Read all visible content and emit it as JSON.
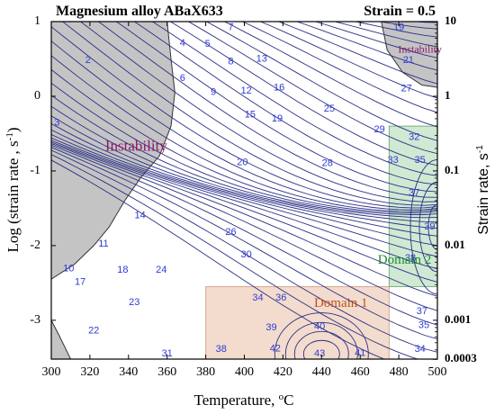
{
  "chart_data": {
    "type": "contour",
    "title": "Magnesium alloy ABaX633",
    "strain_label": "Strain = 0.5",
    "xlabel": "Temperature, ",
    "xlabel_unit_sup": "o",
    "xlabel_unit": "C",
    "ylabel_left": "Log (strain rate , s",
    "ylabel_left_sup": "-1",
    "ylabel_left_end": ")",
    "ylabel_right": "Strain rate, s",
    "ylabel_right_sup": "-1",
    "xlim": [
      300,
      500
    ],
    "ylim": [
      -3.52,
      1
    ],
    "x_ticks": [
      "300",
      "320",
      "340",
      "360",
      "380",
      "400",
      "420",
      "440",
      "460",
      "480",
      "500"
    ],
    "y_ticks_left": [
      "1",
      "0",
      "-1",
      "-2",
      "-3"
    ],
    "y_ticks_right": [
      {
        "value": 10,
        "label": "10"
      },
      {
        "value": 1,
        "label": "1"
      },
      {
        "value": 0.1,
        "label": "0.1"
      },
      {
        "value": 0.01,
        "label": "0.01"
      },
      {
        "value": 0.001,
        "label": "0.001"
      },
      {
        "value": 0.0003,
        "label": "0.0003"
      }
    ],
    "regions": [
      {
        "name": "Instability",
        "kind": "instability",
        "label_pos": [
          344,
          -0.68
        ],
        "color": "#c4c4c4",
        "label_color": "#8b1a6b",
        "outline": [
          [
            300,
            1
          ],
          [
            360,
            1
          ],
          [
            362,
            0.5
          ],
          [
            364,
            0.05
          ],
          [
            362,
            -0.4
          ],
          [
            356,
            -0.8
          ],
          [
            346,
            -1.1
          ],
          [
            338,
            -1.4
          ],
          [
            330,
            -1.75
          ],
          [
            322,
            -2.0
          ],
          [
            312,
            -2.25
          ],
          [
            300,
            -2.45
          ]
        ]
      },
      {
        "name": "Instability",
        "kind": "instability",
        "label_pos": [
          491,
          0.62
        ],
        "color": "#c4c4c4",
        "label_color": "#8b1a6b",
        "outline": [
          [
            300,
            1.0
          ],
          [
            300,
            -3.52
          ],
          [
            310,
            -3.52
          ],
          [
            304,
            -3.2
          ],
          [
            300,
            -3.0
          ]
        ]
      },
      {
        "name": "Instability",
        "kind": "instability",
        "color": "#c4c4c4",
        "outline": [
          [
            471,
            1
          ],
          [
            500,
            1
          ],
          [
            500,
            0.12
          ],
          [
            492,
            0.15
          ],
          [
            482,
            0.32
          ],
          [
            474,
            0.62
          ]
        ]
      }
    ],
    "domains": [
      {
        "name": "Domain 1",
        "x": [
          380,
          475
        ],
        "y": [
          -2.55,
          -3.52
        ],
        "color": "#f3dccd",
        "edge": "#d9a890",
        "label_color": "#c0521a",
        "label_pos": [
          450,
          -2.78
        ]
      },
      {
        "name": "Domain 2",
        "x": [
          475,
          500
        ],
        "y": [
          -0.4,
          -2.55
        ],
        "color": "#cfe9d3",
        "edge": "#77b27f",
        "label_color": "#1e8a2e",
        "label_pos": [
          483,
          -2.2
        ]
      }
    ],
    "contour_labels": [
      {
        "t": 319,
        "v": 0.48,
        "text": "2"
      },
      {
        "t": 303,
        "v": -0.36,
        "text": "3"
      },
      {
        "t": 368,
        "v": 0.71,
        "text": "4"
      },
      {
        "t": 381,
        "v": 0.7,
        "text": "5"
      },
      {
        "t": 368,
        "v": 0.24,
        "text": "6"
      },
      {
        "t": 393,
        "v": 0.92,
        "text": "7"
      },
      {
        "t": 393,
        "v": 0.46,
        "text": "8"
      },
      {
        "t": 384,
        "v": 0.05,
        "text": "9"
      },
      {
        "t": 309,
        "v": -2.31,
        "text": "10"
      },
      {
        "t": 327,
        "v": -1.98,
        "text": "11"
      },
      {
        "t": 401,
        "v": 0.07,
        "text": "12"
      },
      {
        "t": 409,
        "v": 0.5,
        "text": "13"
      },
      {
        "t": 346,
        "v": -1.6,
        "text": "14"
      },
      {
        "t": 403,
        "v": -0.25,
        "text": "15"
      },
      {
        "t": 418,
        "v": 0.11,
        "text": "16"
      },
      {
        "t": 315,
        "v": -2.49,
        "text": "17"
      },
      {
        "t": 337,
        "v": -2.33,
        "text": "18"
      },
      {
        "t": 417,
        "v": -0.3,
        "text": "19"
      },
      {
        "t": 480,
        "v": 0.92,
        "text": "19"
      },
      {
        "t": 399,
        "v": -0.89,
        "text": "20"
      },
      {
        "t": 485,
        "v": 0.48,
        "text": "21"
      },
      {
        "t": 322,
        "v": -3.14,
        "text": "22"
      },
      {
        "t": 343,
        "v": -2.76,
        "text": "23"
      },
      {
        "t": 357,
        "v": -2.33,
        "text": "24"
      },
      {
        "t": 444,
        "v": -0.17,
        "text": "25"
      },
      {
        "t": 393,
        "v": -1.82,
        "text": "26"
      },
      {
        "t": 484,
        "v": 0.1,
        "text": "27"
      },
      {
        "t": 443,
        "v": -0.9,
        "text": "28"
      },
      {
        "t": 470,
        "v": -0.45,
        "text": "29"
      },
      {
        "t": 401,
        "v": -2.12,
        "text": "30"
      },
      {
        "t": 360,
        "v": -3.45,
        "text": "31"
      },
      {
        "t": 488,
        "v": -0.55,
        "text": "32"
      },
      {
        "t": 477,
        "v": -0.86,
        "text": "33"
      },
      {
        "t": 407,
        "v": -2.7,
        "text": "34"
      },
      {
        "t": 491,
        "v": -3.39,
        "text": "34"
      },
      {
        "t": 491,
        "v": -0.86,
        "text": "35"
      },
      {
        "t": 493,
        "v": -3.07,
        "text": "35"
      },
      {
        "t": 419,
        "v": -2.7,
        "text": "36"
      },
      {
        "t": 488,
        "v": -1.3,
        "text": "37"
      },
      {
        "t": 492,
        "v": -2.88,
        "text": "37"
      },
      {
        "t": 388,
        "v": -3.39,
        "text": "38"
      },
      {
        "t": 486,
        "v": -2.17,
        "text": "38"
      },
      {
        "t": 414,
        "v": -3.1,
        "text": "39"
      },
      {
        "t": 496,
        "v": -1.75,
        "text": "39"
      },
      {
        "t": 439,
        "v": -3.09,
        "text": "40"
      },
      {
        "t": 460,
        "v": -3.44,
        "text": "41"
      },
      {
        "t": 416,
        "v": -3.38,
        "text": "42"
      },
      {
        "t": 439,
        "v": -3.45,
        "text": "43"
      }
    ]
  }
}
